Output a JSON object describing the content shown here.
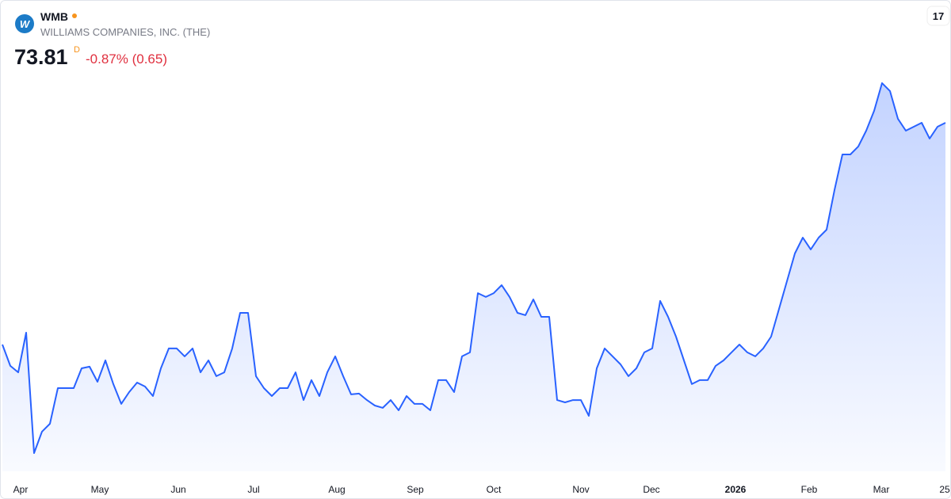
{
  "chart_data": {
    "type": "area",
    "title": "WMB",
    "subtitle": "WILLIAMS COMPANIES, INC. (THE)",
    "last_price": 73.81,
    "interval": "D",
    "change_label": "-0.87% (0.65)",
    "color": "#2962ff",
    "values": [
      59.33,
      57.94,
      57.52,
      60.11,
      52.25,
      53.65,
      54.16,
      56.49,
      56.49,
      56.49,
      57.78,
      57.89,
      56.9,
      58.3,
      56.75,
      55.46,
      56.23,
      56.85,
      56.59,
      55.97,
      57.78,
      59.08,
      59.08,
      58.56,
      59.08,
      57.52,
      58.3,
      57.27,
      57.52,
      59.08,
      61.4,
      61.4,
      57.27,
      56.49,
      55.97,
      56.49,
      56.49,
      57.52,
      55.71,
      57.01,
      55.97,
      57.52,
      58.56,
      57.27,
      56.08,
      56.13,
      55.71,
      55.35,
      55.2,
      55.71,
      55.04,
      55.97,
      55.46,
      55.46,
      55.04,
      57.01,
      57.01,
      56.23,
      58.56,
      58.82,
      62.69,
      62.44,
      62.69,
      63.21,
      62.44,
      61.4,
      61.25,
      62.28,
      61.14,
      61.14,
      55.71,
      55.56,
      55.71,
      55.71,
      54.68,
      57.78,
      59.08,
      58.56,
      58.04,
      57.27,
      57.78,
      58.82,
      59.08,
      62.18,
      61.14,
      59.85,
      58.3,
      56.75,
      57.01,
      57.01,
      57.94,
      58.3,
      58.82,
      59.33,
      58.82,
      58.56,
      59.08,
      59.85,
      61.66,
      63.47,
      65.28,
      66.31,
      65.54,
      66.31,
      66.83,
      69.42,
      71.74,
      71.74,
      72.26,
      73.29,
      74.59,
      76.4,
      75.88,
      74.07,
      73.29,
      73.55,
      73.81,
      72.78,
      73.55,
      73.81
    ],
    "xlim": [
      0,
      119
    ],
    "ylim": [
      51.06,
      78.72
    ],
    "xticks": [
      {
        "value": 2.3,
        "label": "Apr"
      },
      {
        "value": 12.3,
        "label": "May"
      },
      {
        "value": 22.2,
        "label": "Jun"
      },
      {
        "value": 31.7,
        "label": "Jul"
      },
      {
        "value": 42.2,
        "label": "Aug"
      },
      {
        "value": 52.1,
        "label": "Sep"
      },
      {
        "value": 62,
        "label": "Oct"
      },
      {
        "value": 73,
        "label": "Nov"
      },
      {
        "value": 81.9,
        "label": "Dec"
      },
      {
        "value": 92.5,
        "label": "2026"
      },
      {
        "value": 101.8,
        "label": "Feb"
      },
      {
        "value": 110.9,
        "label": "Mar"
      },
      {
        "value": 118.9,
        "label": "25"
      }
    ]
  }
}
